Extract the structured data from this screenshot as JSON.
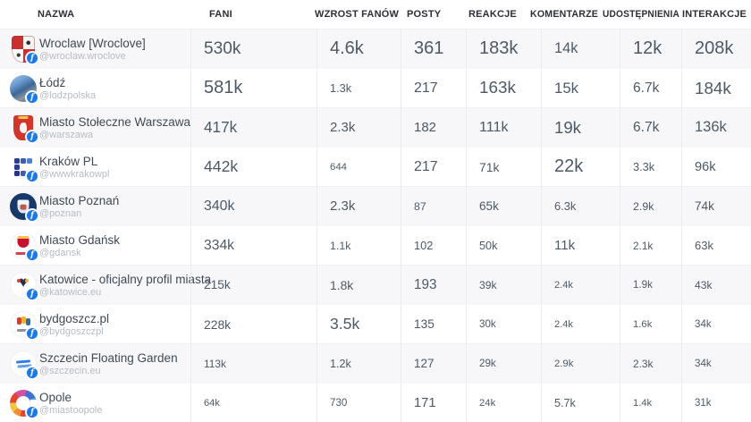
{
  "table": {
    "columns": [
      {
        "key": "nazwa",
        "label": "NAZWA"
      },
      {
        "key": "fani",
        "label": "FANI"
      },
      {
        "key": "wzrost-fanow",
        "label": "WZROST FANÓW"
      },
      {
        "key": "posty",
        "label": "POSTY"
      },
      {
        "key": "reakcje",
        "label": "REAKCJE"
      },
      {
        "key": "komentarze",
        "label": "KOMENTARZE"
      },
      {
        "key": "udostepnienia",
        "label": "UDOSTĘPNIENIA"
      },
      {
        "key": "interakcje",
        "label": "INTERAKCJE"
      }
    ],
    "rows": [
      {
        "name": "Wroclaw [Wroclove]",
        "handle": "@wroclaw.wroclove",
        "avatar": "wroclaw",
        "values": [
          {
            "display": "530k",
            "value": 530000
          },
          {
            "display": "4.6k",
            "value": 4600
          },
          {
            "display": "361",
            "value": 361
          },
          {
            "display": "183k",
            "value": 183000
          },
          {
            "display": "14k",
            "value": 14000
          },
          {
            "display": "12k",
            "value": 12000
          },
          {
            "display": "208k",
            "value": 208000
          }
        ]
      },
      {
        "name": "Łódź",
        "handle": "@lodzpolska",
        "avatar": "lodz",
        "values": [
          {
            "display": "581k",
            "value": 581000
          },
          {
            "display": "1.3k",
            "value": 1300
          },
          {
            "display": "217",
            "value": 217
          },
          {
            "display": "163k",
            "value": 163000
          },
          {
            "display": "15k",
            "value": 15000
          },
          {
            "display": "6.7k",
            "value": 6700
          },
          {
            "display": "184k",
            "value": 184000
          }
        ]
      },
      {
        "name": "Miasto Stołeczne Warszawa",
        "handle": "@warszawa",
        "avatar": "warszawa",
        "values": [
          {
            "display": "417k",
            "value": 417000
          },
          {
            "display": "2.3k",
            "value": 2300
          },
          {
            "display": "182",
            "value": 182
          },
          {
            "display": "111k",
            "value": 111000
          },
          {
            "display": "19k",
            "value": 19000
          },
          {
            "display": "6.7k",
            "value": 6700
          },
          {
            "display": "136k",
            "value": 136000
          }
        ]
      },
      {
        "name": "Kraków PL",
        "handle": "@wwwkrakowpl",
        "avatar": "krakow",
        "values": [
          {
            "display": "442k",
            "value": 442000
          },
          {
            "display": "644",
            "value": 644
          },
          {
            "display": "217",
            "value": 217
          },
          {
            "display": "71k",
            "value": 71000
          },
          {
            "display": "22k",
            "value": 22000
          },
          {
            "display": "3.3k",
            "value": 3300
          },
          {
            "display": "96k",
            "value": 96000
          }
        ]
      },
      {
        "name": "Miasto Poznań",
        "handle": "@poznan",
        "avatar": "poznan",
        "values": [
          {
            "display": "340k",
            "value": 340000
          },
          {
            "display": "2.3k",
            "value": 2300
          },
          {
            "display": "87",
            "value": 87
          },
          {
            "display": "65k",
            "value": 65000
          },
          {
            "display": "6.3k",
            "value": 6300
          },
          {
            "display": "2.9k",
            "value": 2900
          },
          {
            "display": "74k",
            "value": 74000
          }
        ]
      },
      {
        "name": "Miasto Gdańsk",
        "handle": "@gdansk",
        "avatar": "gdansk",
        "values": [
          {
            "display": "334k",
            "value": 334000
          },
          {
            "display": "1.1k",
            "value": 1100
          },
          {
            "display": "102",
            "value": 102
          },
          {
            "display": "50k",
            "value": 50000
          },
          {
            "display": "11k",
            "value": 11000
          },
          {
            "display": "2.1k",
            "value": 2100
          },
          {
            "display": "63k",
            "value": 63000
          }
        ]
      },
      {
        "name": "Katowice - oficjalny profil miasta",
        "handle": "@katowice.eu",
        "avatar": "katowice",
        "values": [
          {
            "display": "215k",
            "value": 215000
          },
          {
            "display": "1.8k",
            "value": 1800
          },
          {
            "display": "193",
            "value": 193
          },
          {
            "display": "39k",
            "value": 39000
          },
          {
            "display": "2.4k",
            "value": 2400
          },
          {
            "display": "1.9k",
            "value": 1900
          },
          {
            "display": "43k",
            "value": 43000
          }
        ]
      },
      {
        "name": "bydgoszcz.pl",
        "handle": "@bydgoszczpl",
        "avatar": "bydgoszcz",
        "values": [
          {
            "display": "228k",
            "value": 228000
          },
          {
            "display": "3.5k",
            "value": 3500
          },
          {
            "display": "135",
            "value": 135
          },
          {
            "display": "30k",
            "value": 30000
          },
          {
            "display": "2.4k",
            "value": 2400
          },
          {
            "display": "1.6k",
            "value": 1600
          },
          {
            "display": "34k",
            "value": 34000
          }
        ]
      },
      {
        "name": "Szczecin Floating Garden",
        "handle": "@szczecin.eu",
        "avatar": "szczecin",
        "values": [
          {
            "display": "113k",
            "value": 113000
          },
          {
            "display": "1.2k",
            "value": 1200
          },
          {
            "display": "127",
            "value": 127
          },
          {
            "display": "29k",
            "value": 29000
          },
          {
            "display": "2.9k",
            "value": 2900
          },
          {
            "display": "2.3k",
            "value": 2300
          },
          {
            "display": "34k",
            "value": 34000
          }
        ]
      },
      {
        "name": "Opole",
        "handle": "@miastoopole",
        "avatar": "opole",
        "values": [
          {
            "display": "64k",
            "value": 64000
          },
          {
            "display": "730",
            "value": 730
          },
          {
            "display": "171",
            "value": 171
          },
          {
            "display": "24k",
            "value": 24000
          },
          {
            "display": "5.7k",
            "value": 5700
          },
          {
            "display": "1.4k",
            "value": 1400
          },
          {
            "display": "31k",
            "value": 31000
          }
        ]
      }
    ]
  },
  "icons": {
    "facebook_glyph": "f"
  },
  "colors": {
    "header_text": "#2c3036",
    "value_text": "#4c5a68",
    "name_text": "#3f4a55",
    "handle_text": "#b6bcc4",
    "row_alt_bg": "#f7f7f9",
    "divider": "#e9ebef",
    "facebook_blue": "#1877f2"
  }
}
